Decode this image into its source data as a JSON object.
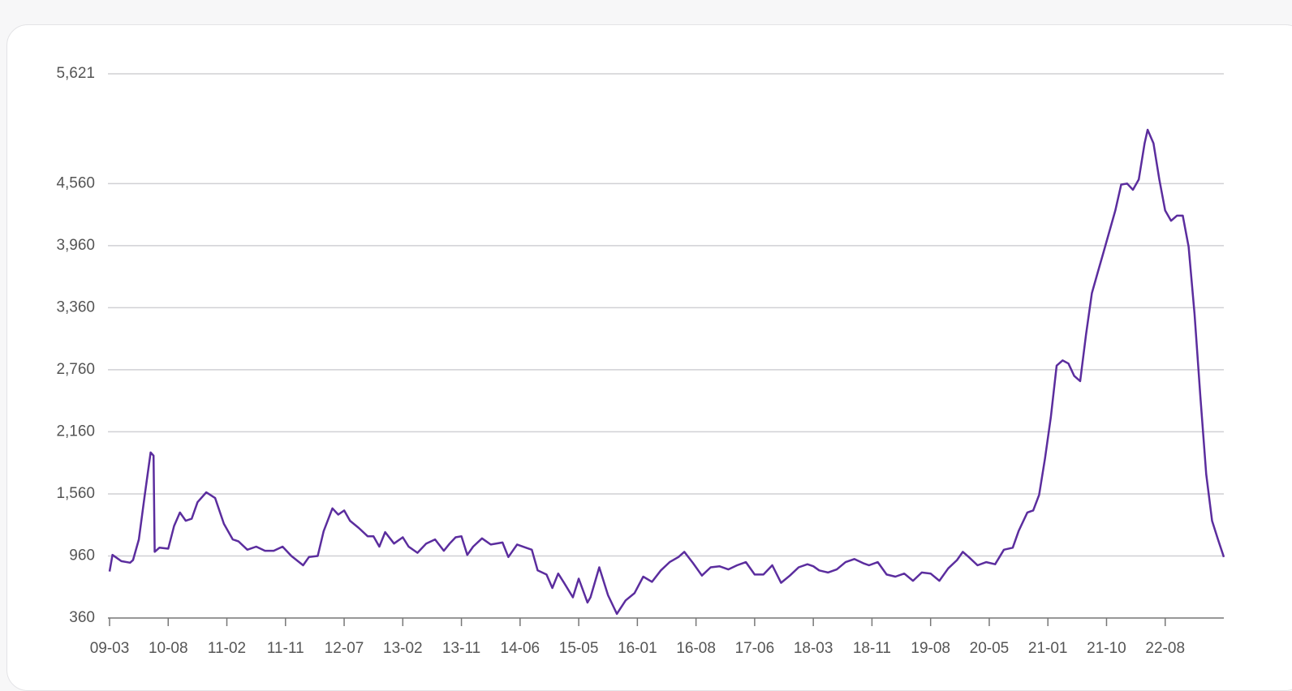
{
  "chart_data": {
    "type": "line",
    "x": [
      0,
      0.5,
      2,
      3.5,
      4,
      5,
      6,
      7,
      7.5,
      7.7,
      8.5,
      10,
      11,
      12,
      13,
      14,
      15,
      16.5,
      18,
      19.5,
      21,
      22,
      23.5,
      25,
      26.5,
      28,
      29.5,
      31,
      33,
      34,
      35.5,
      36.5,
      38,
      39,
      40,
      41,
      42.5,
      44,
      45,
      46,
      47,
      48.5,
      50,
      51,
      52.5,
      54,
      55.5,
      57,
      58,
      59,
      60,
      61,
      62,
      63.5,
      65,
      67,
      68,
      69.5,
      71,
      72,
      73,
      74.5,
      75.5,
      76.5,
      77.5,
      79,
      80,
      81.5,
      82,
      83.5,
      85,
      86.5,
      88,
      89.5,
      91,
      92.5,
      94,
      95.5,
      97,
      98,
      99.5,
      101,
      102.5,
      104,
      105.5,
      107,
      108.5,
      110,
      111.5,
      113,
      114.5,
      116,
      117.5,
      119,
      120,
      121,
      122.5,
      124,
      125.5,
      127,
      128.5,
      129.5,
      131,
      132.5,
      134,
      135.5,
      137,
      138.5,
      140,
      141.5,
      143,
      144.5,
      145.5,
      146.5,
      148,
      149.5,
      151,
      152.5,
      154,
      155,
      156.5,
      157.5,
      158.5,
      159.5,
      160.5,
      161.5,
      162.5,
      163.5,
      164.5,
      165.5,
      166.5,
      167.5,
      168.5,
      169.5,
      170.5,
      171.5,
      172.5,
      173.5,
      174.5,
      175.5,
      176.5,
      177,
      178,
      179,
      180,
      181,
      182,
      183,
      184,
      185,
      186,
      187,
      188,
      189,
      190
    ],
    "series": [
      {
        "color": "#5b2d9e",
        "values": [
          810,
          970,
          910,
          895,
          920,
          1120,
          1550,
          1960,
          1930,
          1000,
          1040,
          1030,
          1250,
          1380,
          1300,
          1320,
          1480,
          1575,
          1520,
          1270,
          1120,
          1100,
          1020,
          1050,
          1010,
          1010,
          1050,
          960,
          870,
          950,
          960,
          1200,
          1420,
          1360,
          1400,
          1300,
          1230,
          1150,
          1150,
          1050,
          1190,
          1080,
          1140,
          1050,
          990,
          1080,
          1120,
          1010,
          1080,
          1140,
          1150,
          970,
          1050,
          1130,
          1070,
          1090,
          950,
          1070,
          1040,
          1020,
          820,
          780,
          650,
          790,
          700,
          560,
          740,
          510,
          560,
          850,
          580,
          400,
          530,
          600,
          760,
          710,
          820,
          900,
          950,
          1000,
          890,
          770,
          850,
          860,
          830,
          870,
          900,
          780,
          780,
          870,
          700,
          770,
          850,
          880,
          860,
          820,
          800,
          830,
          900,
          930,
          890,
          870,
          900,
          780,
          760,
          790,
          720,
          800,
          790,
          720,
          840,
          920,
          1000,
          950,
          870,
          900,
          880,
          1020,
          1040,
          1200,
          1380,
          1400,
          1550,
          1900,
          2300,
          2800,
          2850,
          2820,
          2700,
          2650,
          3100,
          3500,
          3700,
          3900,
          4100,
          4300,
          4550,
          4560,
          4500,
          4600,
          4950,
          5080,
          4950,
          4600,
          4300,
          4200,
          4250,
          4250,
          3950,
          3300,
          2500,
          1750,
          1300,
          1120,
          950
        ]
      }
    ],
    "xlim": [
      0,
      190
    ],
    "xticks": [
      {
        "value": 0,
        "label": "09-03"
      },
      {
        "value": 10,
        "label": "10-08"
      },
      {
        "value": 20,
        "label": "11-02"
      },
      {
        "value": 30,
        "label": "11-11"
      },
      {
        "value": 40,
        "label": "12-07"
      },
      {
        "value": 50,
        "label": "13-02"
      },
      {
        "value": 60,
        "label": "13-11"
      },
      {
        "value": 70,
        "label": "14-06"
      },
      {
        "value": 80,
        "label": "15-05"
      },
      {
        "value": 90,
        "label": "16-01"
      },
      {
        "value": 100,
        "label": "16-08"
      },
      {
        "value": 110,
        "label": "17-06"
      },
      {
        "value": 120,
        "label": "18-03"
      },
      {
        "value": 130,
        "label": "18-11"
      },
      {
        "value": 140,
        "label": "19-08"
      },
      {
        "value": 150,
        "label": "20-05"
      },
      {
        "value": 160,
        "label": "21-01"
      },
      {
        "value": 170,
        "label": "21-10"
      },
      {
        "value": 180,
        "label": "22-08"
      }
    ],
    "ylim": [
      360,
      5621
    ],
    "yticks": [
      {
        "value": 360,
        "label": "360"
      },
      {
        "value": 960,
        "label": "960"
      },
      {
        "value": 1560,
        "label": "1,560"
      },
      {
        "value": 2160,
        "label": "2,160"
      },
      {
        "value": 2760,
        "label": "2,760"
      },
      {
        "value": 3360,
        "label": "3,360"
      },
      {
        "value": 3960,
        "label": "3,960"
      },
      {
        "value": 4560,
        "label": "4,560"
      },
      {
        "value": 5621,
        "label": "5,621"
      }
    ],
    "grid": true
  }
}
